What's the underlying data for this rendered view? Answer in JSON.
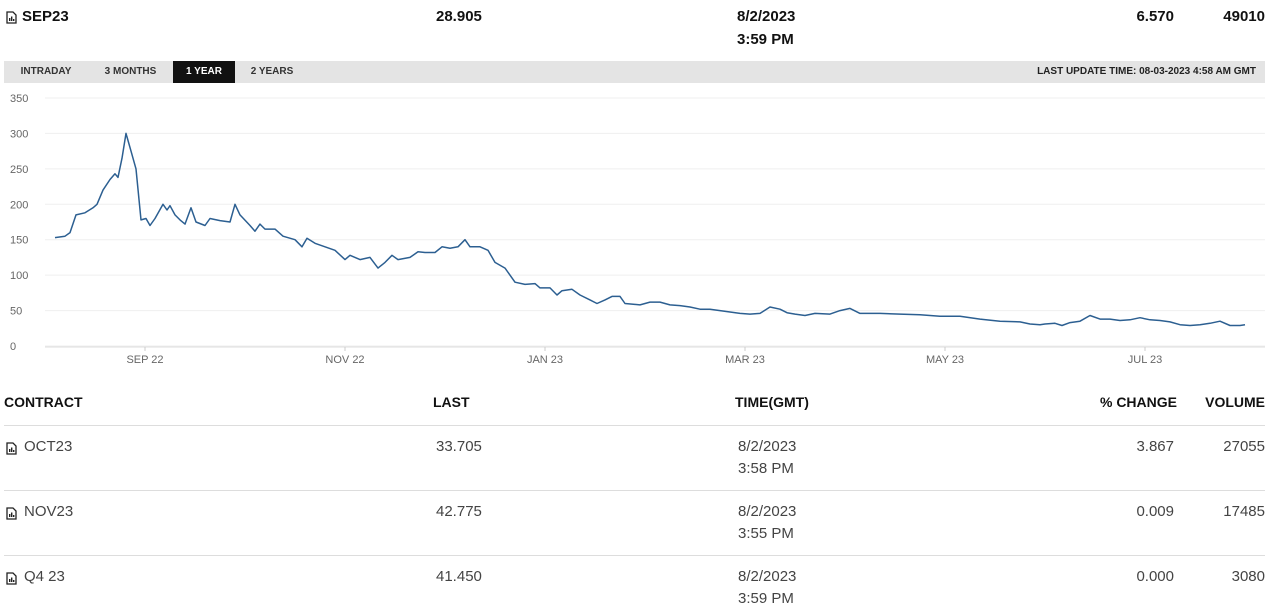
{
  "header": {
    "contract": "SEP23",
    "last": "28.905",
    "date": "8/2/2023",
    "time": "3:59 PM",
    "change": "6.570",
    "volume": "49010"
  },
  "tabs": [
    "INTRADAY",
    "3 MONTHS",
    "1 YEAR",
    "2 YEARS"
  ],
  "active_tab": 2,
  "last_update": "LAST UPDATE TIME: 08-03-2023 4:58 AM GMT",
  "chart_data": {
    "type": "line",
    "x": [
      8.1,
      8.2,
      8.25,
      8.31,
      8.4,
      8.48,
      8.52,
      8.58,
      8.65,
      8.7,
      8.73,
      8.77,
      8.81,
      8.86,
      8.91,
      8.96,
      9.01,
      9.05,
      9.1,
      9.18,
      9.22,
      9.25,
      9.3,
      9.35,
      9.4,
      9.46,
      9.51,
      9.6,
      9.65,
      9.75,
      9.85,
      9.9,
      9.95,
      10.05,
      10.1,
      10.15,
      10.2,
      10.3,
      10.38,
      10.5,
      10.57,
      10.62,
      10.7,
      10.8,
      10.9,
      11.0,
      11.05,
      11.15,
      11.25,
      11.33,
      11.4,
      11.47,
      11.53,
      11.65,
      11.73,
      11.8,
      11.9,
      11.97,
      12.05,
      12.13,
      12.2,
      12.25,
      12.35,
      12.43,
      12.5,
      12.6,
      12.7,
      12.8,
      12.9,
      12.95,
      13.05,
      13.12,
      13.17,
      13.27,
      13.35,
      13.45,
      13.52,
      13.6,
      13.67,
      13.75,
      13.8,
      13.95,
      14.05,
      14.15,
      14.25,
      14.35,
      14.45,
      14.55,
      14.65,
      14.75,
      14.85,
      14.95,
      15.05,
      15.15,
      15.25,
      15.35,
      15.42,
      15.5,
      15.6,
      15.7,
      15.85,
      15.95,
      16.05,
      16.15,
      16.35,
      16.55,
      16.75,
      16.95,
      17.15,
      17.35,
      17.55,
      17.75,
      17.85,
      17.95,
      18.0,
      18.1,
      18.17,
      18.25,
      18.35,
      18.45,
      18.55,
      18.65,
      18.75,
      18.85,
      18.95,
      19.05,
      19.15,
      19.25,
      19.35,
      19.45,
      19.55,
      19.65,
      19.75,
      19.85,
      19.95,
      20.0
    ],
    "series": [
      {
        "color": "#2c5f91",
        "values": [
          153,
          155,
          160,
          185,
          188,
          195,
          200,
          220,
          235,
          243,
          238,
          265,
          300,
          275,
          250,
          178,
          180,
          170,
          180,
          200,
          192,
          198,
          185,
          178,
          172,
          195,
          175,
          170,
          180,
          177,
          175,
          200,
          185,
          170,
          162,
          172,
          165,
          165,
          155,
          150,
          140,
          152,
          145,
          140,
          135,
          122,
          128,
          122,
          125,
          110,
          118,
          128,
          122,
          125,
          133,
          132,
          132,
          140,
          138,
          140,
          150,
          140,
          140,
          135,
          118,
          110,
          90,
          87,
          88,
          82,
          82,
          72,
          78,
          80,
          72,
          65,
          60,
          65,
          70,
          70,
          60,
          58,
          62,
          62,
          58,
          57,
          55,
          52,
          52,
          50,
          48,
          46,
          45,
          46,
          55,
          52,
          47,
          45,
          43,
          46,
          45,
          50,
          53,
          46,
          46,
          45,
          44,
          42,
          42,
          38,
          35,
          34,
          31,
          30,
          31,
          32,
          29,
          33,
          35,
          43,
          38,
          38,
          36,
          37,
          40,
          37,
          36,
          34,
          30,
          29,
          30,
          32,
          35,
          29,
          29,
          30
        ]
      }
    ],
    "xlim": [
      8,
      20.2
    ],
    "xticks": [
      {
        "value": 9,
        "label": "SEP 22"
      },
      {
        "value": 11,
        "label": "NOV 22"
      },
      {
        "value": 13,
        "label": "JAN 23"
      },
      {
        "value": 15,
        "label": "MAR 23"
      },
      {
        "value": 17,
        "label": "MAY 23"
      },
      {
        "value": 19,
        "label": "JUL 23"
      }
    ],
    "ylim": [
      0,
      350
    ],
    "yticks": [
      0,
      50,
      100,
      150,
      200,
      250,
      300,
      350
    ],
    "grid": true
  },
  "table": {
    "columns": [
      "CONTRACT",
      "LAST",
      "TIME(GMT)",
      "% CHANGE",
      "VOLUME"
    ],
    "rows": [
      {
        "contract": "OCT23",
        "last": "33.705",
        "date": "8/2/2023",
        "time": "3:58 PM",
        "change": "3.867",
        "volume": "27055"
      },
      {
        "contract": "NOV23",
        "last": "42.775",
        "date": "8/2/2023",
        "time": "3:55 PM",
        "change": "0.009",
        "volume": "17485"
      },
      {
        "contract": "Q4 23",
        "last": "41.450",
        "date": "8/2/2023",
        "time": "3:59 PM",
        "change": "0.000",
        "volume": "3080"
      }
    ]
  }
}
